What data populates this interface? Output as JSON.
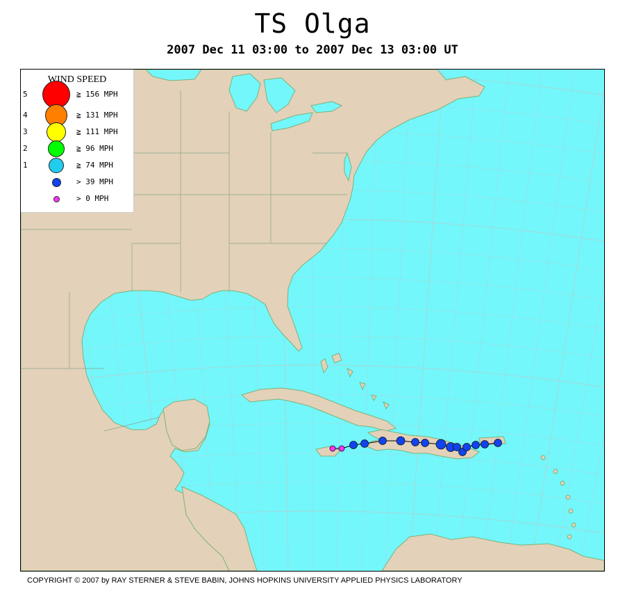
{
  "title": "TS Olga",
  "subtitle": "2007 Dec 11 03:00 to 2007 Dec 13 03:00 UT",
  "legend": {
    "title": "WIND SPEED",
    "items": [
      {
        "category": "5",
        "label": "≧ 156 MPH",
        "color": "#ff0000"
      },
      {
        "category": "4",
        "label": "≧ 131 MPH",
        "color": "#ff7f00"
      },
      {
        "category": "3",
        "label": "≧ 111 MPH",
        "color": "#ffff00"
      },
      {
        "category": "2",
        "label": "≧ 96 MPH",
        "color": "#00ff00"
      },
      {
        "category": "1",
        "label": "≧ 74 MPH",
        "color": "#22ccee"
      },
      {
        "category": "",
        "label": "> 39 MPH",
        "color": "#1144ee"
      },
      {
        "category": "",
        "label": "> 0 MPH",
        "color": "#ff33ff"
      }
    ]
  },
  "copyright": "COPYRIGHT © 2007 by RAY STERNER & STEVE BABIN, JOHNS HOPKINS UNIVERSITY APPLIED PHYSICS LABORATORY",
  "colors": {
    "ocean": "#73f7fb",
    "land": "#e3d1b9",
    "coast": "#7cb27a",
    "grid": "#9fdcdc",
    "track_line": "#000000"
  },
  "track": [
    {
      "intensity": "> 0 MPH"
    },
    {
      "intensity": "> 0 MPH"
    },
    {
      "intensity": "> 39 MPH"
    },
    {
      "intensity": "> 39 MPH"
    },
    {
      "intensity": "> 39 MPH"
    },
    {
      "intensity": "> 39 MPH"
    },
    {
      "intensity": "> 39 MPH"
    },
    {
      "intensity": "> 39 MPH"
    },
    {
      "intensity": "> 39 MPH"
    },
    {
      "intensity": "> 39 MPH"
    },
    {
      "intensity": "> 39 MPH"
    },
    {
      "intensity": "> 39 MPH"
    },
    {
      "intensity": "> 39 MPH"
    },
    {
      "intensity": "> 39 MPH"
    },
    {
      "intensity": "> 39 MPH"
    },
    {
      "intensity": "> 39 MPH"
    },
    {
      "intensity": "> 39 MPH"
    }
  ]
}
